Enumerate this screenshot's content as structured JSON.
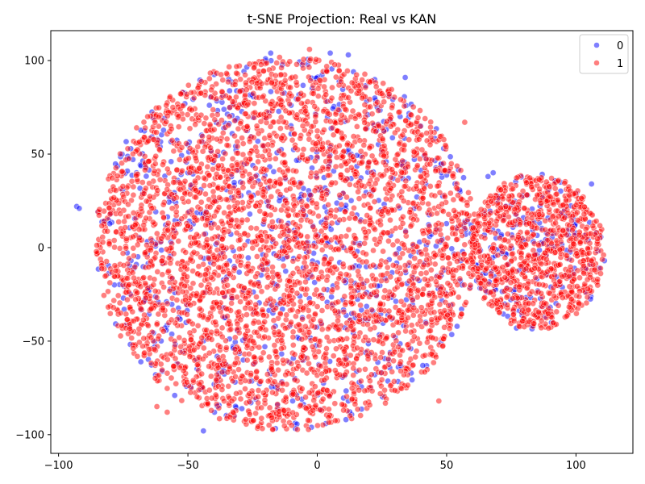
{
  "chart_data": {
    "type": "scatter",
    "title": "t-SNE Projection: Real vs KAN",
    "xlabel": "",
    "ylabel": "",
    "xlim": [
      -103,
      122
    ],
    "ylim": [
      -110,
      116
    ],
    "x_ticks": [
      -100,
      -50,
      0,
      50,
      100
    ],
    "y_ticks": [
      -100,
      -50,
      0,
      50,
      100
    ],
    "grid": false,
    "legend": {
      "placement": "top-right",
      "entries": [
        "0",
        "1"
      ]
    },
    "series": [
      {
        "name": "0",
        "color": "#0000ff",
        "alpha": 0.5,
        "clusters": [
          {
            "cx": -12,
            "cy": 2,
            "rx": 74,
            "ry": 100,
            "count": 700,
            "seed": 11
          },
          {
            "cx": 85,
            "cy": -2,
            "rx": 26,
            "ry": 42,
            "count": 160,
            "seed": 12
          }
        ],
        "points": [
          [
            -93,
            22
          ],
          [
            -92,
            21
          ],
          [
            -44,
            -98
          ],
          [
            -32,
            -90
          ],
          [
            -20,
            101
          ],
          [
            -18,
            104
          ],
          [
            5,
            104
          ],
          [
            12,
            103
          ],
          [
            14,
            94
          ],
          [
            -6,
            -81
          ],
          [
            12,
            -82
          ],
          [
            34,
            91
          ],
          [
            -50,
            55
          ],
          [
            66,
            38
          ],
          [
            68,
            40
          ],
          [
            106,
            34
          ],
          [
            109,
            -11
          ],
          [
            111,
            -7
          ],
          [
            83,
            -42
          ],
          [
            77,
            -43
          ],
          [
            40,
            65
          ],
          [
            56,
            -20
          ],
          [
            -52,
            83
          ],
          [
            48,
            40
          ]
        ]
      },
      {
        "name": "1",
        "color": "#ff0000",
        "alpha": 0.5,
        "clusters": [
          {
            "cx": -12,
            "cy": 2,
            "rx": 74,
            "ry": 100,
            "count": 3600,
            "seed": 21
          },
          {
            "cx": 85,
            "cy": -2,
            "rx": 26,
            "ry": 42,
            "count": 900,
            "seed": 22
          }
        ],
        "points": [
          [
            -3,
            106
          ],
          [
            47,
            -82
          ],
          [
            95,
            9
          ],
          [
            -62,
            -85
          ],
          [
            -58,
            -88
          ],
          [
            57,
            67
          ]
        ]
      }
    ]
  }
}
